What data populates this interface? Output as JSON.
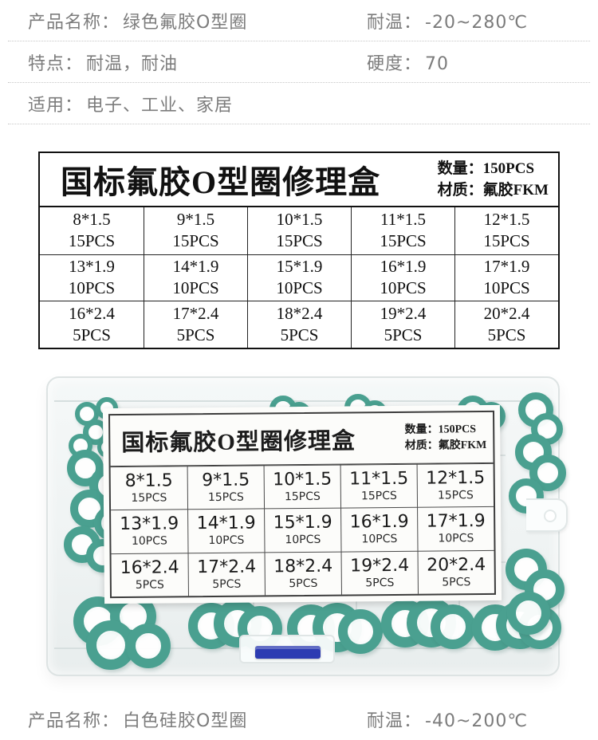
{
  "specs_top": {
    "rows": [
      {
        "label": "产品名称：",
        "value": "绿色氟胶O型圈",
        "label2": "耐温：",
        "value2": "-20~280℃"
      },
      {
        "label": "特点：",
        "value": "耐温，耐油",
        "label2": "硬度：",
        "value2": "70"
      },
      {
        "label": "适用：",
        "value": "电子、工业、家居"
      }
    ]
  },
  "spec_bottom": {
    "label": "产品名称：",
    "value": "白色硅胶O型圈",
    "label2": "耐温：",
    "value2": "-40~200℃"
  },
  "repair_kit_table": {
    "title": "国标氟胶O型圈修理盒",
    "quantity_label": "数量：",
    "quantity_value": "150PCS",
    "material_label": "材质：",
    "material_value": "氟胶FKM",
    "cells": [
      {
        "size": "8*1.5",
        "qty": "15PCS"
      },
      {
        "size": "9*1.5",
        "qty": "15PCS"
      },
      {
        "size": "10*1.5",
        "qty": "15PCS"
      },
      {
        "size": "11*1.5",
        "qty": "15PCS"
      },
      {
        "size": "12*1.5",
        "qty": "15PCS"
      },
      {
        "size": "13*1.9",
        "qty": "10PCS"
      },
      {
        "size": "14*1.9",
        "qty": "10PCS"
      },
      {
        "size": "15*1.9",
        "qty": "10PCS"
      },
      {
        "size": "16*1.9",
        "qty": "10PCS"
      },
      {
        "size": "17*1.9",
        "qty": "10PCS"
      },
      {
        "size": "16*2.4",
        "qty": "5PCS"
      },
      {
        "size": "17*2.4",
        "qty": "5PCS"
      },
      {
        "size": "18*2.4",
        "qty": "5PCS"
      },
      {
        "size": "19*2.4",
        "qty": "5PCS"
      },
      {
        "size": "20*2.4",
        "qty": "5PCS"
      }
    ]
  },
  "photo": {
    "ring_color": "#4aa090",
    "latch_color": "#2d3cb2",
    "rings": [
      [
        94,
        44,
        30
      ],
      [
        120,
        38,
        28
      ],
      [
        104,
        66,
        32
      ],
      [
        86,
        84,
        30
      ],
      [
        122,
        88,
        26
      ],
      [
        140,
        56,
        24
      ],
      [
        84,
        104,
        46
      ],
      [
        112,
        124,
        50
      ],
      [
        88,
        154,
        48
      ],
      [
        118,
        174,
        44
      ],
      [
        80,
        200,
        46
      ],
      [
        108,
        216,
        42
      ],
      [
        92,
        288,
        62
      ],
      [
        138,
        284,
        58
      ],
      [
        108,
        318,
        62
      ],
      [
        158,
        322,
        56
      ],
      [
        236,
        296,
        58
      ],
      [
        268,
        292,
        60
      ],
      [
        298,
        300,
        56
      ],
      [
        360,
        298,
        60
      ],
      [
        392,
        296,
        62
      ],
      [
        424,
        304,
        56
      ],
      [
        478,
        292,
        60
      ],
      [
        510,
        290,
        62
      ],
      [
        540,
        298,
        56
      ],
      [
        592,
        298,
        58
      ],
      [
        622,
        294,
        60
      ],
      [
        650,
        300,
        54
      ],
      [
        338,
        36,
        34
      ],
      [
        360,
        44,
        30
      ],
      [
        432,
        34,
        34
      ],
      [
        455,
        42,
        30
      ],
      [
        573,
        36,
        40
      ],
      [
        598,
        44,
        36
      ],
      [
        650,
        32,
        44
      ],
      [
        666,
        58,
        40
      ],
      [
        646,
        84,
        46
      ],
      [
        664,
        110,
        46
      ],
      [
        638,
        140,
        44
      ],
      [
        634,
        228,
        52
      ],
      [
        658,
        254,
        50
      ],
      [
        636,
        282,
        54
      ]
    ]
  }
}
